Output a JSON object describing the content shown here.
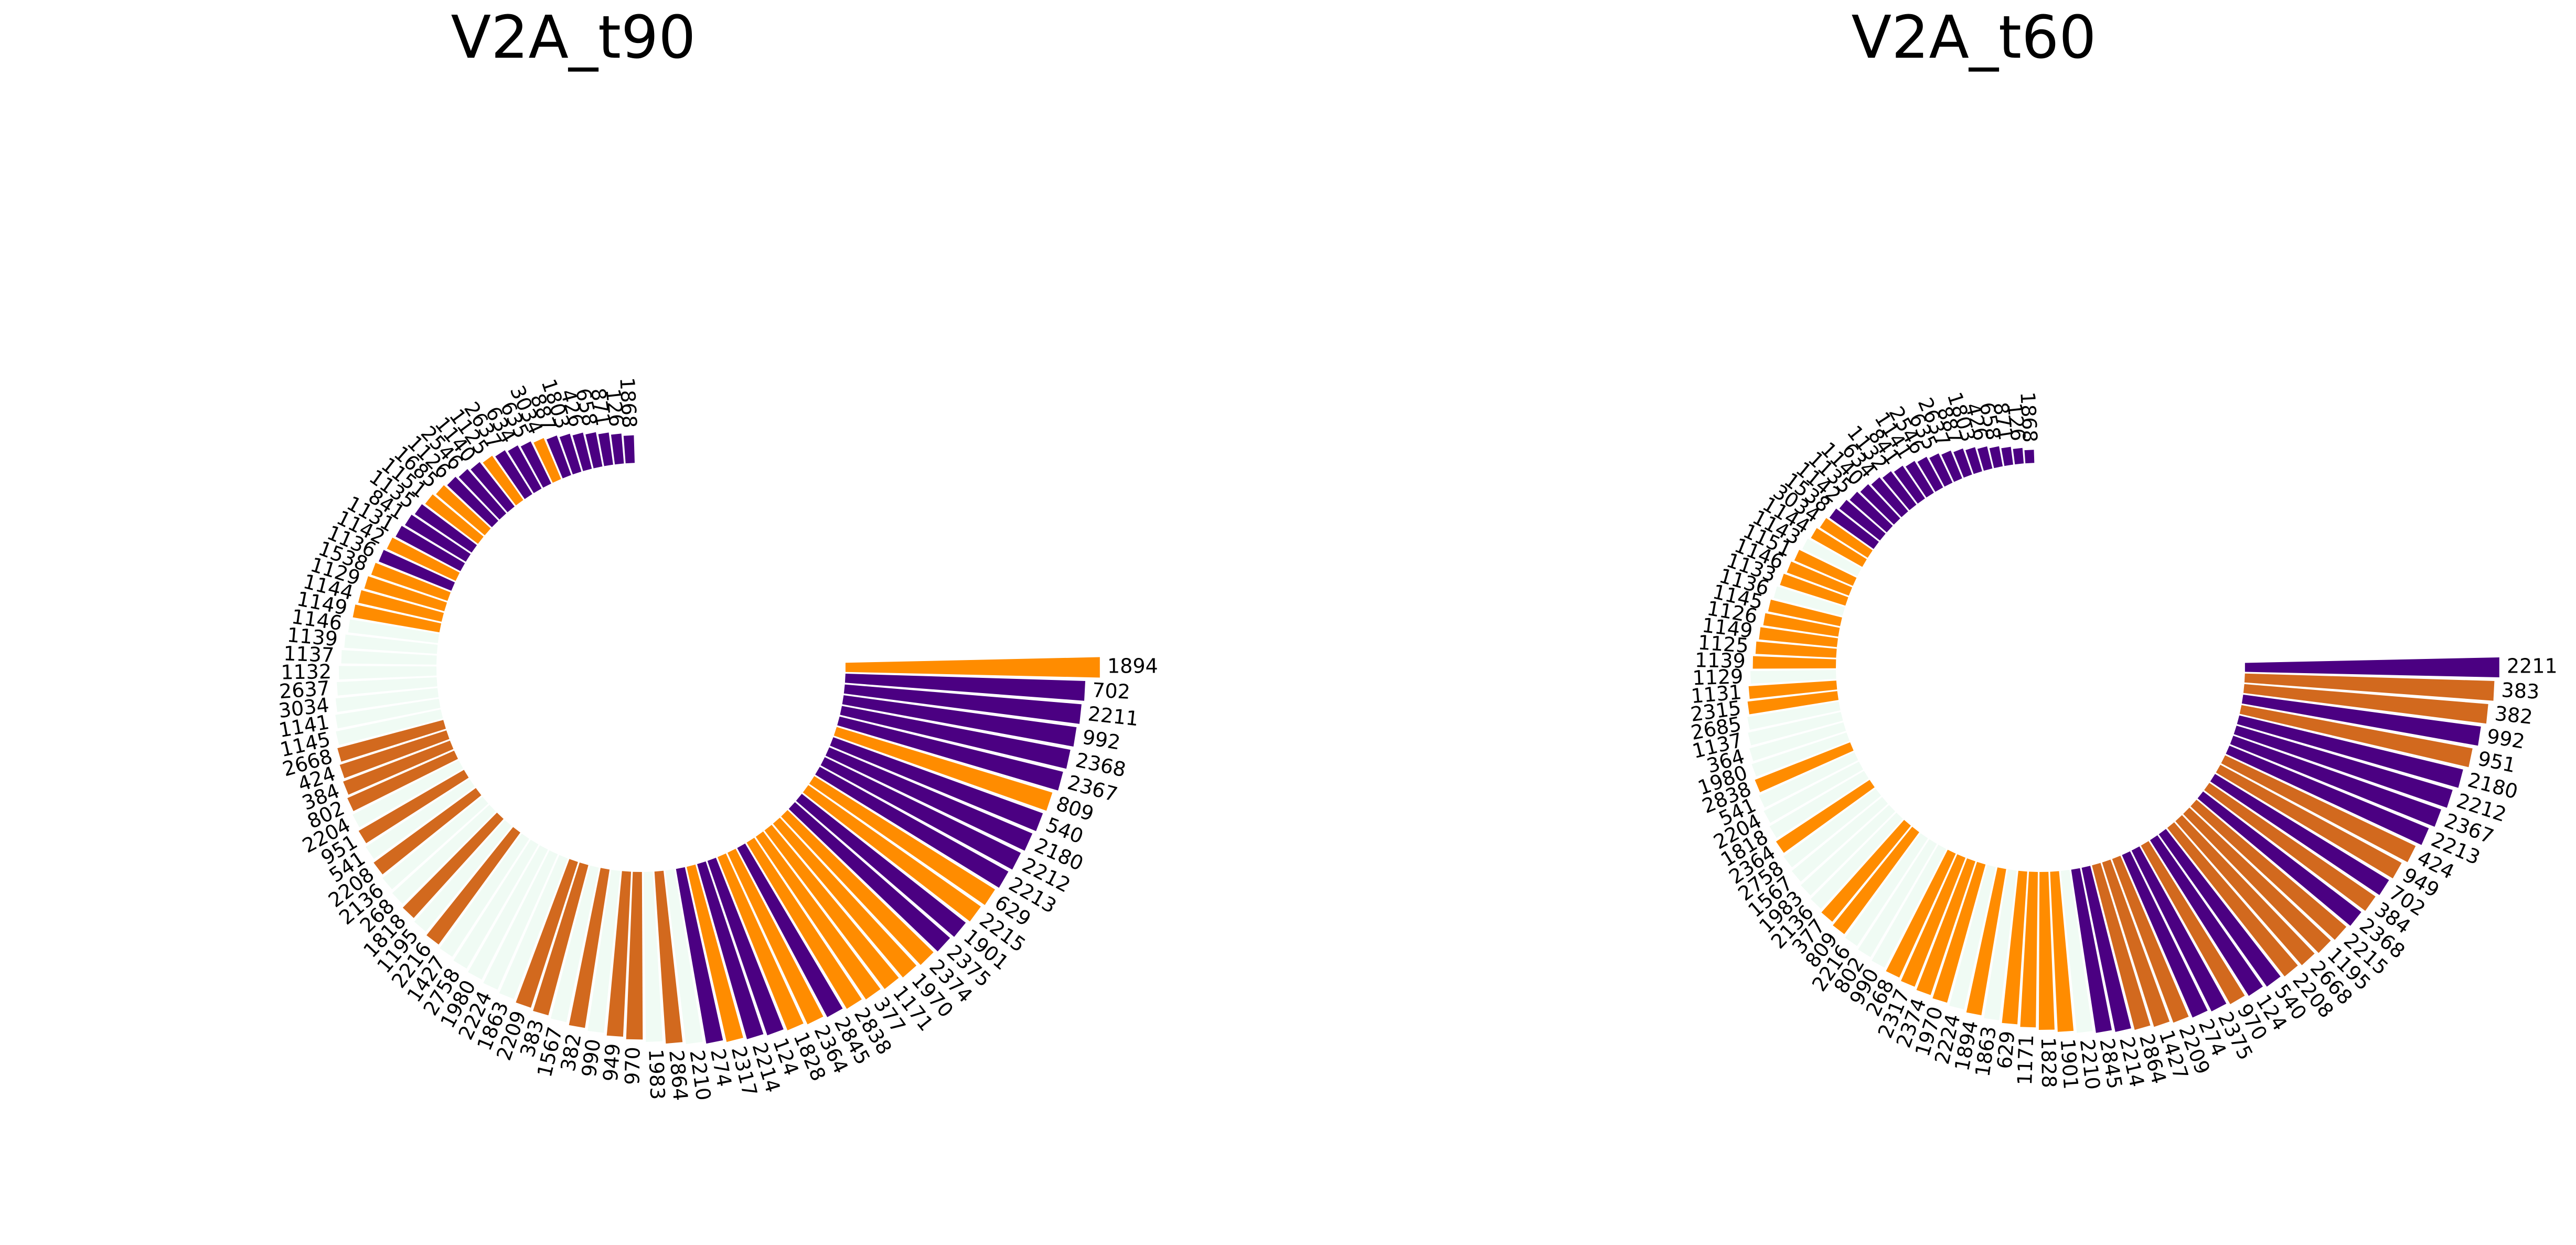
{
  "colors": {
    "empty": "#f0fbf4",
    "purple": "#4b0082",
    "orange": "#ff8c00",
    "darkorange": "#d2691e"
  },
  "chart_data": [
    {
      "type": "circular-bar",
      "title": "V2A_t90",
      "value_range": [
        0,
        1
      ],
      "bars": [
        {
          "label": "1894",
          "value": 1.0,
          "color": "orange"
        },
        {
          "label": "702",
          "value": 0.94,
          "color": "purple"
        },
        {
          "label": "2211",
          "value": 0.93,
          "color": "purple"
        },
        {
          "label": "992",
          "value": 0.92,
          "color": "purple"
        },
        {
          "label": "2368",
          "value": 0.91,
          "color": "purple"
        },
        {
          "label": "2367",
          "value": 0.9,
          "color": "purple"
        },
        {
          "label": "809",
          "value": 0.88,
          "color": "orange"
        },
        {
          "label": "540",
          "value": 0.87,
          "color": "purple"
        },
        {
          "label": "2180",
          "value": 0.86,
          "color": "purple"
        },
        {
          "label": "2212",
          "value": 0.85,
          "color": "purple"
        },
        {
          "label": "2213",
          "value": 0.84,
          "color": "purple"
        },
        {
          "label": "629",
          "value": 0.83,
          "color": "orange"
        },
        {
          "label": "2215",
          "value": 0.82,
          "color": "orange"
        },
        {
          "label": "1901",
          "value": 0.81,
          "color": "purple"
        },
        {
          "label": "2375",
          "value": 0.8,
          "color": "purple"
        },
        {
          "label": "2374",
          "value": 0.79,
          "color": "orange"
        },
        {
          "label": "1970",
          "value": 0.78,
          "color": "orange"
        },
        {
          "label": "1171",
          "value": 0.77,
          "color": "orange"
        },
        {
          "label": "377",
          "value": 0.76,
          "color": "orange"
        },
        {
          "label": "2838",
          "value": 0.75,
          "color": "orange"
        },
        {
          "label": "2845",
          "value": 0.74,
          "color": "purple"
        },
        {
          "label": "2364",
          "value": 0.73,
          "color": "orange"
        },
        {
          "label": "1828",
          "value": 0.72,
          "color": "orange"
        },
        {
          "label": "124",
          "value": 0.71,
          "color": "purple"
        },
        {
          "label": "2214",
          "value": 0.7,
          "color": "purple"
        },
        {
          "label": "2317",
          "value": 0.69,
          "color": "orange"
        },
        {
          "label": "274",
          "value": 0.68,
          "color": "purple"
        },
        {
          "label": "2210",
          "value": 0.67,
          "color": "empty"
        },
        {
          "label": "2864",
          "value": 0.66,
          "color": "darkorange"
        },
        {
          "label": "1983",
          "value": 0.65,
          "color": "empty"
        },
        {
          "label": "970",
          "value": 0.64,
          "color": "darkorange"
        },
        {
          "label": "949",
          "value": 0.63,
          "color": "darkorange"
        },
        {
          "label": "990",
          "value": 0.62,
          "color": "empty"
        },
        {
          "label": "382",
          "value": 0.61,
          "color": "darkorange"
        },
        {
          "label": "1567",
          "value": 0.6,
          "color": "empty"
        },
        {
          "label": "383",
          "value": 0.59,
          "color": "darkorange"
        },
        {
          "label": "2209",
          "value": 0.58,
          "color": "darkorange"
        },
        {
          "label": "1863",
          "value": 0.57,
          "color": "empty"
        },
        {
          "label": "2224",
          "value": 0.56,
          "color": "empty"
        },
        {
          "label": "1980",
          "value": 0.55,
          "color": "empty"
        },
        {
          "label": "2758",
          "value": 0.54,
          "color": "empty"
        },
        {
          "label": "1427",
          "value": 0.53,
          "color": "empty"
        },
        {
          "label": "2216",
          "value": 0.52,
          "color": "darkorange"
        },
        {
          "label": "1195",
          "value": 0.51,
          "color": "empty"
        },
        {
          "label": "1818",
          "value": 0.5,
          "color": "darkorange"
        },
        {
          "label": "268",
          "value": 0.49,
          "color": "empty"
        },
        {
          "label": "2136",
          "value": 0.48,
          "color": "empty"
        },
        {
          "label": "2208",
          "value": 0.47,
          "color": "darkorange"
        },
        {
          "label": "541",
          "value": 0.46,
          "color": "empty"
        },
        {
          "label": "951",
          "value": 0.45,
          "color": "darkorange"
        },
        {
          "label": "2204",
          "value": 0.44,
          "color": "empty"
        },
        {
          "label": "802",
          "value": 0.43,
          "color": "darkorange"
        },
        {
          "label": "384",
          "value": 0.42,
          "color": "darkorange"
        },
        {
          "label": "424",
          "value": 0.41,
          "color": "darkorange"
        },
        {
          "label": "2668",
          "value": 0.4,
          "color": "darkorange"
        },
        {
          "label": "1145",
          "value": 0.39,
          "color": "empty"
        },
        {
          "label": "1141",
          "value": 0.38,
          "color": "empty"
        },
        {
          "label": "3034",
          "value": 0.37,
          "color": "empty"
        },
        {
          "label": "2637",
          "value": 0.36,
          "color": "empty"
        },
        {
          "label": "1132",
          "value": 0.35,
          "color": "empty"
        },
        {
          "label": "1137",
          "value": 0.34,
          "color": "empty"
        },
        {
          "label": "1139",
          "value": 0.33,
          "color": "empty"
        },
        {
          "label": "1146",
          "value": 0.32,
          "color": "empty"
        },
        {
          "label": "1149",
          "value": 0.31,
          "color": "orange"
        },
        {
          "label": "1144",
          "value": 0.3,
          "color": "orange"
        },
        {
          "label": "1129",
          "value": 0.29,
          "color": "orange"
        },
        {
          "label": "1538",
          "value": 0.28,
          "color": "orange"
        },
        {
          "label": "1136",
          "value": 0.27,
          "color": "purple"
        },
        {
          "label": "1142",
          "value": 0.26,
          "color": "orange"
        },
        {
          "label": "1131",
          "value": 0.25,
          "color": "purple"
        },
        {
          "label": "841",
          "value": 0.24,
          "color": "purple"
        },
        {
          "label": "1135",
          "value": 0.23,
          "color": "purple"
        },
        {
          "label": "1151",
          "value": 0.22,
          "color": "orange"
        },
        {
          "label": "1685",
          "value": 0.21,
          "color": "orange"
        },
        {
          "label": "1126",
          "value": 0.2,
          "color": "purple"
        },
        {
          "label": "2546",
          "value": 0.19,
          "color": "purple"
        },
        {
          "label": "1140",
          "value": 0.18,
          "color": "purple"
        },
        {
          "label": "1125",
          "value": 0.17,
          "color": "orange"
        },
        {
          "label": "2637",
          "value": 0.16,
          "color": "purple"
        },
        {
          "label": "634",
          "value": 0.15,
          "color": "purple"
        },
        {
          "label": "635",
          "value": 0.14,
          "color": "purple"
        },
        {
          "label": "3034",
          "value": 0.13,
          "color": "orange"
        },
        {
          "label": "887",
          "value": 0.12,
          "color": "purple"
        },
        {
          "label": "1803",
          "value": 0.11,
          "color": "purple"
        },
        {
          "label": "426",
          "value": 0.1,
          "color": "purple"
        },
        {
          "label": "658",
          "value": 0.09,
          "color": "purple"
        },
        {
          "label": "871",
          "value": 0.08,
          "color": "purple"
        },
        {
          "label": "126",
          "value": 0.07,
          "color": "purple"
        },
        {
          "label": "1868",
          "value": 0.06,
          "color": "purple"
        }
      ]
    },
    {
      "type": "circular-bar",
      "title": "V2A_t60",
      "value_range": [
        0,
        1
      ],
      "bars": [
        {
          "label": "2211",
          "value": 1.0,
          "color": "purple"
        },
        {
          "label": "383",
          "value": 0.98,
          "color": "darkorange"
        },
        {
          "label": "382",
          "value": 0.96,
          "color": "darkorange"
        },
        {
          "label": "992",
          "value": 0.94,
          "color": "purple"
        },
        {
          "label": "951",
          "value": 0.92,
          "color": "darkorange"
        },
        {
          "label": "2180",
          "value": 0.9,
          "color": "purple"
        },
        {
          "label": "2212",
          "value": 0.88,
          "color": "purple"
        },
        {
          "label": "2367",
          "value": 0.86,
          "color": "purple"
        },
        {
          "label": "2213",
          "value": 0.84,
          "color": "purple"
        },
        {
          "label": "424",
          "value": 0.82,
          "color": "darkorange"
        },
        {
          "label": "949",
          "value": 0.8,
          "color": "darkorange"
        },
        {
          "label": "702",
          "value": 0.79,
          "color": "purple"
        },
        {
          "label": "384",
          "value": 0.78,
          "color": "darkorange"
        },
        {
          "label": "2368",
          "value": 0.77,
          "color": "purple"
        },
        {
          "label": "2215",
          "value": 0.76,
          "color": "darkorange"
        },
        {
          "label": "1195",
          "value": 0.75,
          "color": "darkorange"
        },
        {
          "label": "2668",
          "value": 0.74,
          "color": "darkorange"
        },
        {
          "label": "2208",
          "value": 0.73,
          "color": "darkorange"
        },
        {
          "label": "540",
          "value": 0.72,
          "color": "purple"
        },
        {
          "label": "124",
          "value": 0.71,
          "color": "purple"
        },
        {
          "label": "970",
          "value": 0.7,
          "color": "darkorange"
        },
        {
          "label": "2375",
          "value": 0.69,
          "color": "purple"
        },
        {
          "label": "274",
          "value": 0.68,
          "color": "purple"
        },
        {
          "label": "2209",
          "value": 0.67,
          "color": "darkorange"
        },
        {
          "label": "1427",
          "value": 0.66,
          "color": "darkorange"
        },
        {
          "label": "2864",
          "value": 0.65,
          "color": "darkorange"
        },
        {
          "label": "2214",
          "value": 0.64,
          "color": "purple"
        },
        {
          "label": "2845",
          "value": 0.63,
          "color": "purple"
        },
        {
          "label": "2210",
          "value": 0.62,
          "color": "empty"
        },
        {
          "label": "1901",
          "value": 0.61,
          "color": "orange"
        },
        {
          "label": "1828",
          "value": 0.6,
          "color": "orange"
        },
        {
          "label": "1171",
          "value": 0.59,
          "color": "orange"
        },
        {
          "label": "629",
          "value": 0.58,
          "color": "orange"
        },
        {
          "label": "1863",
          "value": 0.57,
          "color": "empty"
        },
        {
          "label": "1894",
          "value": 0.56,
          "color": "orange"
        },
        {
          "label": "2224",
          "value": 0.55,
          "color": "empty"
        },
        {
          "label": "1970",
          "value": 0.54,
          "color": "orange"
        },
        {
          "label": "2374",
          "value": 0.53,
          "color": "orange"
        },
        {
          "label": "2317",
          "value": 0.52,
          "color": "orange"
        },
        {
          "label": "268",
          "value": 0.51,
          "color": "orange"
        },
        {
          "label": "990",
          "value": 0.5,
          "color": "empty"
        },
        {
          "label": "802",
          "value": 0.49,
          "color": "empty"
        },
        {
          "label": "2216",
          "value": 0.48,
          "color": "empty"
        },
        {
          "label": "809",
          "value": 0.47,
          "color": "orange"
        },
        {
          "label": "377",
          "value": 0.46,
          "color": "orange"
        },
        {
          "label": "2136",
          "value": 0.45,
          "color": "empty"
        },
        {
          "label": "1983",
          "value": 0.44,
          "color": "empty"
        },
        {
          "label": "1567",
          "value": 0.43,
          "color": "empty"
        },
        {
          "label": "2758",
          "value": 0.42,
          "color": "empty"
        },
        {
          "label": "2364",
          "value": 0.41,
          "color": "orange"
        },
        {
          "label": "1818",
          "value": 0.4,
          "color": "empty"
        },
        {
          "label": "2204",
          "value": 0.39,
          "color": "empty"
        },
        {
          "label": "541",
          "value": 0.38,
          "color": "empty"
        },
        {
          "label": "2838",
          "value": 0.37,
          "color": "orange"
        },
        {
          "label": "1980",
          "value": 0.36,
          "color": "empty"
        },
        {
          "label": "364",
          "value": 0.35,
          "color": "empty"
        },
        {
          "label": "1137",
          "value": 0.34,
          "color": "empty"
        },
        {
          "label": "2685",
          "value": 0.33,
          "color": "empty"
        },
        {
          "label": "2315",
          "value": 0.32,
          "color": "orange"
        },
        {
          "label": "1131",
          "value": 0.31,
          "color": "orange"
        },
        {
          "label": "1129",
          "value": 0.3,
          "color": "empty"
        },
        {
          "label": "1139",
          "value": 0.29,
          "color": "orange"
        },
        {
          "label": "1125",
          "value": 0.28,
          "color": "orange"
        },
        {
          "label": "1149",
          "value": 0.27,
          "color": "orange"
        },
        {
          "label": "1126",
          "value": 0.26,
          "color": "orange"
        },
        {
          "label": "1145",
          "value": 0.25,
          "color": "orange"
        },
        {
          "label": "1136",
          "value": 0.24,
          "color": "empty"
        },
        {
          "label": "1133",
          "value": 0.23,
          "color": "orange"
        },
        {
          "label": "1146",
          "value": 0.22,
          "color": "orange"
        },
        {
          "label": "1151",
          "value": 0.21,
          "color": "orange"
        },
        {
          "label": "1143",
          "value": 0.2,
          "color": "empty"
        },
        {
          "label": "1144",
          "value": 0.19,
          "color": "orange"
        },
        {
          "label": "3034",
          "value": 0.18,
          "color": "orange"
        },
        {
          "label": "1538",
          "value": 0.17,
          "color": "purple"
        },
        {
          "label": "1142",
          "value": 0.16,
          "color": "purple"
        },
        {
          "label": "1135",
          "value": 0.15,
          "color": "purple"
        },
        {
          "label": "1140",
          "value": 0.14,
          "color": "purple"
        },
        {
          "label": "634",
          "value": 0.13,
          "color": "purple"
        },
        {
          "label": "1132",
          "value": 0.12,
          "color": "purple"
        },
        {
          "label": "841",
          "value": 0.11,
          "color": "purple"
        },
        {
          "label": "1141",
          "value": 0.1,
          "color": "purple"
        },
        {
          "label": "2546",
          "value": 0.09,
          "color": "purple"
        },
        {
          "label": "635",
          "value": 0.08,
          "color": "purple"
        },
        {
          "label": "2637",
          "value": 0.07,
          "color": "purple"
        },
        {
          "label": "887",
          "value": 0.06,
          "color": "purple"
        },
        {
          "label": "1803",
          "value": 0.05,
          "color": "purple"
        },
        {
          "label": "426",
          "value": 0.04,
          "color": "purple"
        },
        {
          "label": "658",
          "value": 0.03,
          "color": "purple"
        },
        {
          "label": "871",
          "value": 0.02,
          "color": "purple"
        },
        {
          "label": "126",
          "value": 0.01,
          "color": "purple"
        },
        {
          "label": "1868",
          "value": 0.0,
          "color": "purple"
        }
      ]
    }
  ]
}
